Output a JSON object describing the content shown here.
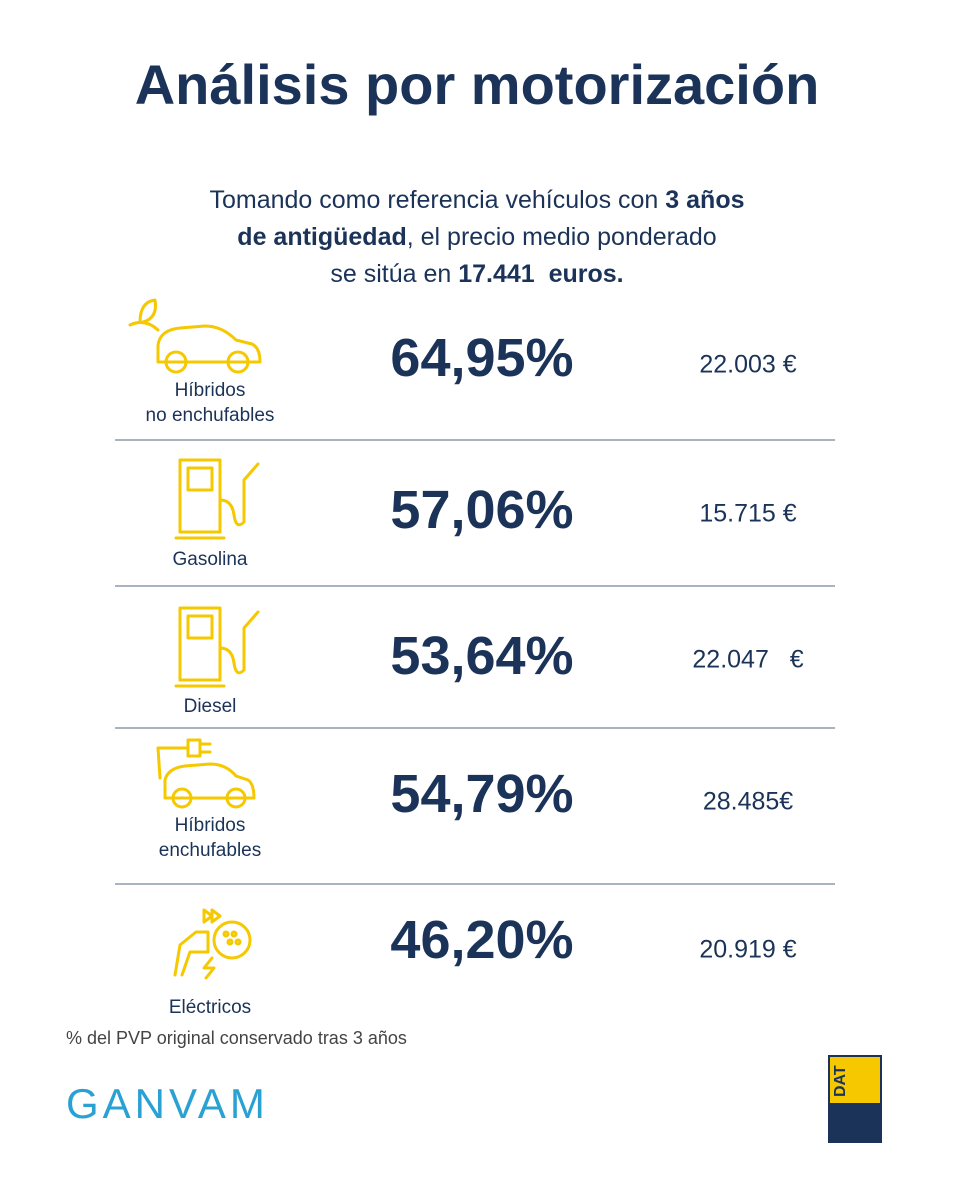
{
  "title": "Análisis por motorización",
  "intro": [
    [
      {
        "text": "Tomando como referencia vehículos con ",
        "bold": false
      },
      {
        "text": "3 años",
        "bold": true
      }
    ],
    [
      {
        "text": "de antigüedad",
        "bold": true
      },
      {
        "text": ", el precio medio ponderado",
        "bold": false
      }
    ],
    [
      {
        "text": "se sitúa en ",
        "bold": false
      },
      {
        "text": "17.441  euros.",
        "bold": true
      }
    ]
  ],
  "rows": [
    {
      "label": [
        "Híbridos",
        "no enchufables"
      ],
      "percent": "64,95%",
      "price": "22.003 €"
    },
    {
      "label": [
        "Gasolina"
      ],
      "percent": "57,06%",
      "price": "15.715 €"
    },
    {
      "label": [
        "Diesel"
      ],
      "percent": "53,64%",
      "price": "22.047   €"
    },
    {
      "label": [
        "Híbridos",
        "enchufables"
      ],
      "percent": "54,79%",
      "price": "28.485€"
    },
    {
      "label": [
        "Eléctricos"
      ],
      "percent": "46,20%",
      "price": "20.919 €"
    }
  ],
  "footnote": "% del PVP original conservado tras 3 años",
  "logos": {
    "ganvam": "GANVAM",
    "dat": "DAT"
  }
}
